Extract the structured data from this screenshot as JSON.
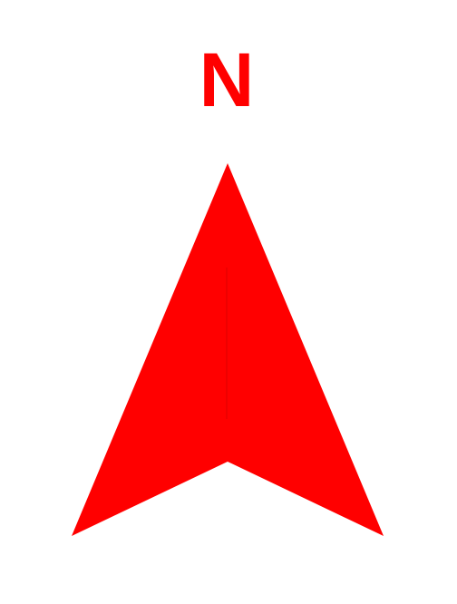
{
  "compass": {
    "label": "N",
    "color": "#ff0000",
    "icon": "north-arrow-icon"
  }
}
